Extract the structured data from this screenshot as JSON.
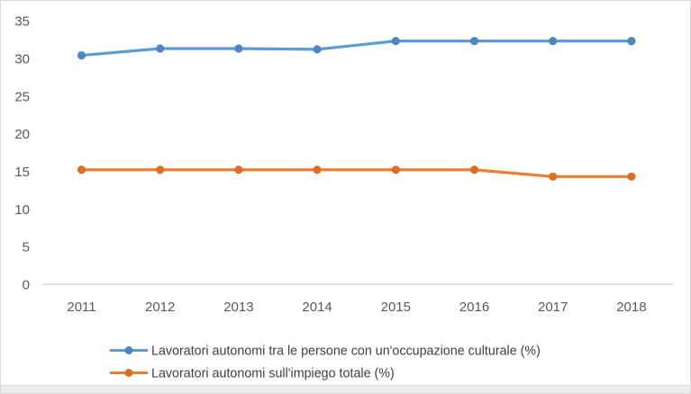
{
  "chart_data": {
    "type": "line",
    "title": "",
    "xlabel": "",
    "ylabel": "",
    "categories": [
      "2011",
      "2012",
      "2013",
      "2014",
      "2015",
      "2016",
      "2017",
      "2018"
    ],
    "series": [
      {
        "name": "Lavoratori autonomi tra le persone con un'occupazione culturale (%)",
        "values": [
          30.4,
          31.3,
          31.3,
          31.2,
          32.3,
          32.3,
          32.3,
          32.3
        ],
        "line_color": "#5B9BD5",
        "marker_color": "#4F86C0"
      },
      {
        "name": "Lavoratori autonomi sull'impiego totale (%)",
        "values": [
          15.2,
          15.2,
          15.2,
          15.2,
          15.2,
          15.2,
          14.3,
          14.3
        ],
        "line_color": "#ED7D31",
        "marker_color": "#DB6F26"
      }
    ],
    "y_ticks": [
      0,
      5,
      10,
      15,
      20,
      25,
      30,
      35
    ],
    "ylim": [
      0,
      35
    ],
    "grid": false,
    "legend_position": "bottom",
    "marker_shape": "circle"
  },
  "colors": {
    "background": "#ffffff",
    "axis_line": "#d9d9d9",
    "tick_text": "#595959",
    "legend_text": "#404040",
    "frame_border": "#d8d8d8",
    "bottom_strip": "#ececec"
  }
}
